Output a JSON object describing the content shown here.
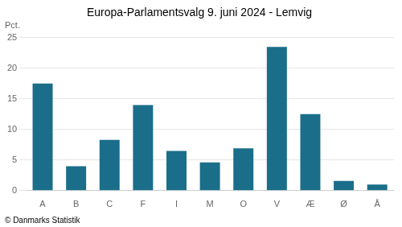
{
  "chart_data": {
    "type": "bar",
    "title": "Europa-Parlamentsvalg 9. juni 2024 - Lemvig",
    "ylabel": "Pct.",
    "footer": "© Danmarks Statistik",
    "categories": [
      "A",
      "B",
      "C",
      "F",
      "I",
      "M",
      "O",
      "V",
      "Æ",
      "Ø",
      "Å"
    ],
    "values": [
      17.5,
      4.0,
      8.3,
      14.0,
      6.5,
      4.6,
      6.9,
      23.5,
      12.5,
      1.6,
      1.0
    ],
    "color": "#1a6e8a",
    "ylim": [
      0,
      25
    ],
    "yticks": [
      0,
      5,
      10,
      15,
      20,
      25
    ],
    "grid": true
  }
}
